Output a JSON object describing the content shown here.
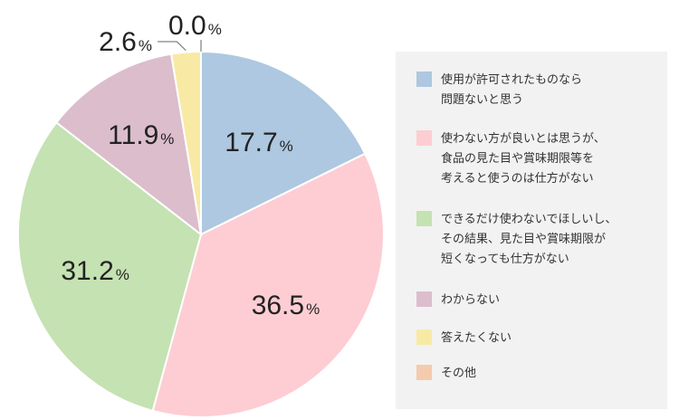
{
  "chart_data": {
    "type": "pie",
    "percent_sign": "%",
    "slices": [
      {
        "name": "使用が許可されたものなら問題ないと思う",
        "legend_lines": [
          "使用が許可されたものなら",
          "問題ないと思う"
        ],
        "value": 17.7,
        "label": "17.7",
        "color": "#adc8e0"
      },
      {
        "name": "使わない方が良いとは思うが、食品の見た目や賞味期限等を考えると使うのは仕方がない",
        "legend_lines": [
          "使わない方が良いとは思うが、",
          "食品の見た目や賞味期限等を",
          "考えると使うのは仕方がない"
        ],
        "value": 36.5,
        "label": "36.5",
        "color": "#fdcdd3"
      },
      {
        "name": "できるだけ使わないでほしいし、その結果、見た目や賞味期限が短くなっても仕方がない",
        "legend_lines": [
          "できるだけ使わないでほしいし、",
          "その結果、見た目や賞味期限が",
          "短くなっても仕方がない"
        ],
        "value": 31.2,
        "label": "31.2",
        "color": "#c5e2b2"
      },
      {
        "name": "わからない",
        "legend_lines": [
          "わからない"
        ],
        "value": 11.9,
        "label": "11.9",
        "color": "#dbbdcb"
      },
      {
        "name": "答えたくない",
        "legend_lines": [
          "答えたくない"
        ],
        "value": 2.6,
        "label": "2.6",
        "color": "#f8eaa4"
      },
      {
        "name": "その他",
        "legend_lines": [
          "その他"
        ],
        "value": 0.0,
        "label": "0.0",
        "color": "#f4cbae"
      }
    ],
    "legend_position": "right",
    "legend_background": "#f2f2f2"
  }
}
